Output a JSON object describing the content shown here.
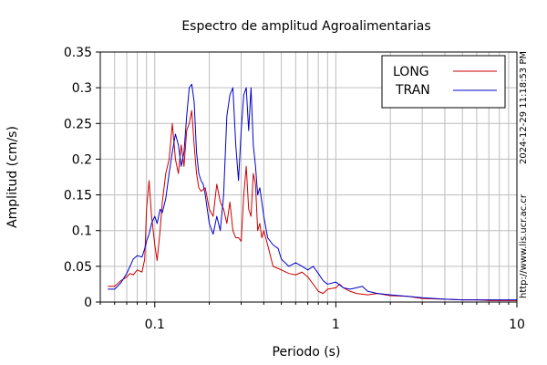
{
  "chart_data": {
    "type": "line",
    "title": "Espectro de amplitud Agroalimentarias",
    "xlabel": "Periodo (s)",
    "ylabel": "Amplitud (cm/s)",
    "x_scale": "log",
    "xlim": [
      0.05,
      10
    ],
    "ylim": [
      0,
      0.35
    ],
    "x_ticks": [
      0.1,
      1,
      10
    ],
    "x_tick_labels": [
      "0.1",
      "1",
      "10"
    ],
    "y_ticks": [
      0,
      0.05,
      0.1,
      0.15,
      0.2,
      0.25,
      0.3,
      0.35
    ],
    "y_tick_labels": [
      "0",
      "0.05",
      "0.1",
      "0.15",
      "0.2",
      "0.25",
      "0.3",
      "0.35"
    ],
    "grid": true,
    "legend_position": "top-right",
    "series": [
      {
        "name": "LONG",
        "color": "#cc0000",
        "points": [
          [
            0.055,
            0.022
          ],
          [
            0.06,
            0.022
          ],
          [
            0.065,
            0.03
          ],
          [
            0.07,
            0.035
          ],
          [
            0.073,
            0.04
          ],
          [
            0.076,
            0.038
          ],
          [
            0.08,
            0.045
          ],
          [
            0.085,
            0.042
          ],
          [
            0.088,
            0.06
          ],
          [
            0.09,
            0.13
          ],
          [
            0.093,
            0.17
          ],
          [
            0.096,
            0.12
          ],
          [
            0.1,
            0.08
          ],
          [
            0.103,
            0.058
          ],
          [
            0.107,
            0.1
          ],
          [
            0.11,
            0.14
          ],
          [
            0.115,
            0.18
          ],
          [
            0.12,
            0.2
          ],
          [
            0.125,
            0.25
          ],
          [
            0.13,
            0.2
          ],
          [
            0.135,
            0.18
          ],
          [
            0.14,
            0.22
          ],
          [
            0.145,
            0.19
          ],
          [
            0.15,
            0.24
          ],
          [
            0.155,
            0.25
          ],
          [
            0.16,
            0.268
          ],
          [
            0.165,
            0.22
          ],
          [
            0.17,
            0.18
          ],
          [
            0.175,
            0.16
          ],
          [
            0.18,
            0.155
          ],
          [
            0.19,
            0.16
          ],
          [
            0.2,
            0.13
          ],
          [
            0.21,
            0.12
          ],
          [
            0.22,
            0.165
          ],
          [
            0.23,
            0.14
          ],
          [
            0.24,
            0.13
          ],
          [
            0.25,
            0.11
          ],
          [
            0.26,
            0.14
          ],
          [
            0.27,
            0.1
          ],
          [
            0.28,
            0.09
          ],
          [
            0.29,
            0.09
          ],
          [
            0.3,
            0.085
          ],
          [
            0.31,
            0.15
          ],
          [
            0.32,
            0.19
          ],
          [
            0.33,
            0.13
          ],
          [
            0.34,
            0.12
          ],
          [
            0.35,
            0.18
          ],
          [
            0.36,
            0.165
          ],
          [
            0.37,
            0.1
          ],
          [
            0.38,
            0.11
          ],
          [
            0.39,
            0.09
          ],
          [
            0.4,
            0.1
          ],
          [
            0.42,
            0.08
          ],
          [
            0.45,
            0.05
          ],
          [
            0.5,
            0.045
          ],
          [
            0.55,
            0.04
          ],
          [
            0.6,
            0.038
          ],
          [
            0.65,
            0.042
          ],
          [
            0.7,
            0.035
          ],
          [
            0.75,
            0.025
          ],
          [
            0.8,
            0.015
          ],
          [
            0.85,
            0.012
          ],
          [
            0.9,
            0.018
          ],
          [
            1.0,
            0.02
          ],
          [
            1.05,
            0.025
          ],
          [
            1.1,
            0.02
          ],
          [
            1.2,
            0.015
          ],
          [
            1.3,
            0.012
          ],
          [
            1.5,
            0.01
          ],
          [
            1.7,
            0.012
          ],
          [
            2.0,
            0.009
          ],
          [
            2.5,
            0.008
          ],
          [
            3.0,
            0.005
          ],
          [
            4.0,
            0.004
          ],
          [
            5.0,
            0.003
          ],
          [
            6.0,
            0.003
          ],
          [
            7.0,
            0.002
          ],
          [
            8.0,
            0.002
          ],
          [
            9.0,
            0.002
          ],
          [
            10.0,
            0.002
          ]
        ]
      },
      {
        "name": "TRAN",
        "color": "#0000cc",
        "points": [
          [
            0.055,
            0.018
          ],
          [
            0.06,
            0.018
          ],
          [
            0.065,
            0.027
          ],
          [
            0.07,
            0.04
          ],
          [
            0.073,
            0.05
          ],
          [
            0.076,
            0.06
          ],
          [
            0.08,
            0.065
          ],
          [
            0.085,
            0.063
          ],
          [
            0.088,
            0.075
          ],
          [
            0.09,
            0.085
          ],
          [
            0.093,
            0.095
          ],
          [
            0.096,
            0.11
          ],
          [
            0.1,
            0.12
          ],
          [
            0.103,
            0.11
          ],
          [
            0.107,
            0.13
          ],
          [
            0.11,
            0.125
          ],
          [
            0.115,
            0.145
          ],
          [
            0.12,
            0.18
          ],
          [
            0.125,
            0.21
          ],
          [
            0.13,
            0.235
          ],
          [
            0.135,
            0.22
          ],
          [
            0.14,
            0.19
          ],
          [
            0.145,
            0.21
          ],
          [
            0.15,
            0.26
          ],
          [
            0.155,
            0.3
          ],
          [
            0.16,
            0.305
          ],
          [
            0.165,
            0.28
          ],
          [
            0.17,
            0.21
          ],
          [
            0.175,
            0.18
          ],
          [
            0.18,
            0.17
          ],
          [
            0.185,
            0.165
          ],
          [
            0.19,
            0.15
          ],
          [
            0.2,
            0.11
          ],
          [
            0.21,
            0.095
          ],
          [
            0.22,
            0.12
          ],
          [
            0.23,
            0.1
          ],
          [
            0.24,
            0.15
          ],
          [
            0.25,
            0.26
          ],
          [
            0.26,
            0.29
          ],
          [
            0.27,
            0.3
          ],
          [
            0.28,
            0.22
          ],
          [
            0.29,
            0.17
          ],
          [
            0.3,
            0.24
          ],
          [
            0.31,
            0.29
          ],
          [
            0.32,
            0.3
          ],
          [
            0.33,
            0.24
          ],
          [
            0.34,
            0.3
          ],
          [
            0.35,
            0.22
          ],
          [
            0.36,
            0.19
          ],
          [
            0.37,
            0.15
          ],
          [
            0.38,
            0.16
          ],
          [
            0.39,
            0.14
          ],
          [
            0.4,
            0.12
          ],
          [
            0.42,
            0.09
          ],
          [
            0.45,
            0.08
          ],
          [
            0.48,
            0.075
          ],
          [
            0.5,
            0.06
          ],
          [
            0.55,
            0.05
          ],
          [
            0.6,
            0.055
          ],
          [
            0.65,
            0.05
          ],
          [
            0.7,
            0.045
          ],
          [
            0.75,
            0.05
          ],
          [
            0.8,
            0.04
          ],
          [
            0.85,
            0.03
          ],
          [
            0.9,
            0.025
          ],
          [
            1.0,
            0.028
          ],
          [
            1.1,
            0.02
          ],
          [
            1.2,
            0.018
          ],
          [
            1.3,
            0.02
          ],
          [
            1.4,
            0.022
          ],
          [
            1.5,
            0.015
          ],
          [
            1.7,
            0.012
          ],
          [
            2.0,
            0.01
          ],
          [
            2.5,
            0.008
          ],
          [
            3.0,
            0.006
          ],
          [
            4.0,
            0.004
          ],
          [
            5.0,
            0.003
          ],
          [
            6.0,
            0.003
          ],
          [
            7.0,
            0.003
          ],
          [
            8.0,
            0.003
          ],
          [
            9.0,
            0.003
          ],
          [
            10.0,
            0.003
          ]
        ]
      }
    ]
  },
  "side_labels": {
    "timestamp": "2024-12-29 11:18:53 PM",
    "url": "http://www.lis.ucr.ac.cr"
  }
}
